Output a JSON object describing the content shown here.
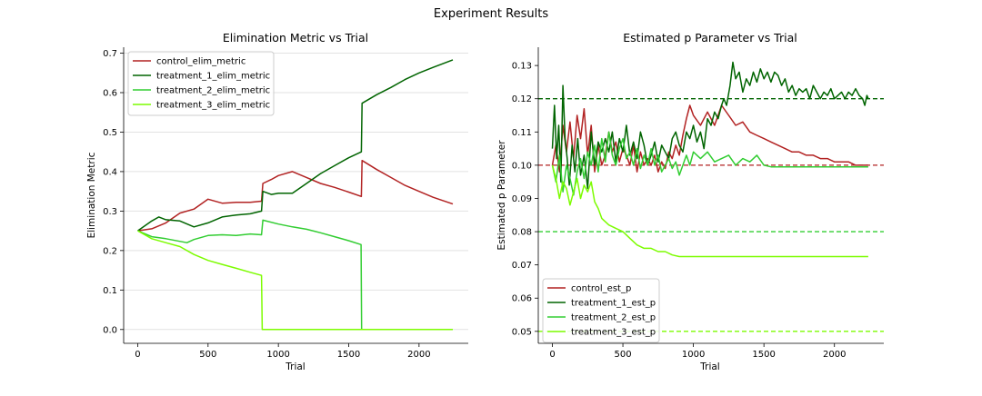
{
  "figure": {
    "title": "Experiment Results"
  },
  "chart_data": [
    {
      "type": "line",
      "title": "Elimination Metric vs Trial",
      "xlabel": "Trial",
      "ylabel": "Elimination Metric",
      "xlim": [
        -100,
        2350
      ],
      "ylim": [
        -0.035,
        0.715
      ],
      "xticks": [
        0,
        500,
        1000,
        1500,
        2000
      ],
      "yticks": [
        0.0,
        0.1,
        0.2,
        0.3,
        0.4,
        0.5,
        0.6,
        0.7
      ],
      "ytick_labels": [
        "0.0",
        "0.1",
        "0.2",
        "0.3",
        "0.4",
        "0.5",
        "0.6",
        "0.7"
      ],
      "grid": "horizontal",
      "legend_position": "top-left",
      "series": [
        {
          "name": "control_elim_metric",
          "color": "#b22222",
          "x": [
            0,
            100,
            200,
            300,
            400,
            500,
            600,
            700,
            800,
            880,
            890,
            950,
            1000,
            1100,
            1200,
            1300,
            1400,
            1500,
            1590,
            1595,
            1700,
            1800,
            1900,
            2000,
            2100,
            2240
          ],
          "y": [
            0.25,
            0.255,
            0.27,
            0.295,
            0.305,
            0.33,
            0.32,
            0.322,
            0.322,
            0.325,
            0.37,
            0.38,
            0.39,
            0.4,
            0.385,
            0.37,
            0.36,
            0.348,
            0.337,
            0.428,
            0.405,
            0.385,
            0.365,
            0.35,
            0.335,
            0.318
          ]
        },
        {
          "name": "treatment_1_elim_metric",
          "color": "#006400",
          "x": [
            0,
            100,
            150,
            200,
            300,
            400,
            500,
            600,
            700,
            800,
            880,
            890,
            950,
            1000,
            1100,
            1200,
            1300,
            1400,
            1500,
            1590,
            1595,
            1700,
            1800,
            1900,
            2000,
            2100,
            2240
          ],
          "y": [
            0.25,
            0.275,
            0.285,
            0.278,
            0.275,
            0.26,
            0.27,
            0.285,
            0.29,
            0.293,
            0.3,
            0.35,
            0.342,
            0.345,
            0.345,
            0.37,
            0.395,
            0.415,
            0.435,
            0.45,
            0.573,
            0.595,
            0.613,
            0.633,
            0.65,
            0.664,
            0.683
          ]
        },
        {
          "name": "treatment_2_elim_metric",
          "color": "#32cd32",
          "x": [
            0,
            100,
            200,
            350,
            400,
            500,
            600,
            700,
            800,
            880,
            890,
            1000,
            1100,
            1200,
            1300,
            1400,
            1500,
            1588,
            1592,
            2240
          ],
          "y": [
            0.25,
            0.235,
            0.23,
            0.22,
            0.228,
            0.238,
            0.24,
            0.238,
            0.242,
            0.24,
            0.277,
            0.267,
            0.26,
            0.254,
            0.245,
            0.235,
            0.225,
            0.215,
            0.0,
            0.0
          ]
        },
        {
          "name": "treatment_3_elim_metric",
          "color": "#7cfc00",
          "x": [
            0,
            100,
            200,
            300,
            400,
            500,
            600,
            700,
            800,
            880,
            885,
            2240
          ],
          "y": [
            0.25,
            0.23,
            0.22,
            0.21,
            0.19,
            0.175,
            0.165,
            0.155,
            0.145,
            0.137,
            0.0,
            0.0
          ]
        }
      ]
    },
    {
      "type": "line",
      "title": "Estimated p Parameter vs Trial",
      "xlabel": "Trial",
      "ylabel": "Estimated p Parameter",
      "xlim": [
        -100,
        2350
      ],
      "ylim": [
        0.0464,
        0.1355
      ],
      "xticks": [
        0,
        500,
        1000,
        1500,
        2000
      ],
      "yticks": [
        0.05,
        0.06,
        0.07,
        0.08,
        0.09,
        0.1,
        0.11,
        0.12,
        0.13
      ],
      "ytick_labels": [
        "0.05",
        "0.06",
        "0.07",
        "0.08",
        "0.09",
        "0.10",
        "0.11",
        "0.12",
        "0.13"
      ],
      "grid": "none",
      "legend_position": "bottom-left",
      "reference_lines": [
        {
          "y": 0.12,
          "color": "#006400"
        },
        {
          "y": 0.1,
          "color": "#b22222"
        },
        {
          "y": 0.08,
          "color": "#32cd32"
        },
        {
          "y": 0.05,
          "color": "#7cfc00"
        }
      ],
      "series": [
        {
          "name": "control_est_p",
          "color": "#b22222",
          "x": [
            0,
            25,
            50,
            75,
            100,
            125,
            150,
            175,
            200,
            225,
            250,
            275,
            300,
            325,
            350,
            375,
            400,
            425,
            450,
            475,
            500,
            525,
            550,
            575,
            600,
            625,
            650,
            675,
            700,
            725,
            750,
            775,
            800,
            825,
            850,
            875,
            900,
            925,
            950,
            975,
            1000,
            1050,
            1100,
            1150,
            1200,
            1250,
            1300,
            1350,
            1400,
            1450,
            1500,
            1550,
            1600,
            1650,
            1700,
            1750,
            1800,
            1850,
            1900,
            1950,
            2000,
            2050,
            2100,
            2150,
            2200,
            2240
          ],
          "y": [
            0.1,
            0.106,
            0.098,
            0.112,
            0.104,
            0.113,
            0.102,
            0.115,
            0.108,
            0.117,
            0.103,
            0.112,
            0.098,
            0.106,
            0.1,
            0.103,
            0.11,
            0.104,
            0.107,
            0.101,
            0.105,
            0.103,
            0.1,
            0.106,
            0.098,
            0.104,
            0.1,
            0.102,
            0.1,
            0.103,
            0.098,
            0.101,
            0.099,
            0.104,
            0.102,
            0.106,
            0.103,
            0.109,
            0.114,
            0.118,
            0.115,
            0.112,
            0.116,
            0.112,
            0.118,
            0.115,
            0.112,
            0.113,
            0.11,
            0.109,
            0.108,
            0.107,
            0.106,
            0.105,
            0.104,
            0.104,
            0.103,
            0.103,
            0.102,
            0.102,
            0.101,
            0.101,
            0.101,
            0.1,
            0.1,
            0.1
          ]
        },
        {
          "name": "treatment_1_est_p",
          "color": "#006400",
          "x": [
            0,
            15,
            30,
            45,
            60,
            75,
            90,
            105,
            120,
            140,
            160,
            180,
            200,
            225,
            250,
            275,
            300,
            325,
            350,
            375,
            400,
            425,
            450,
            475,
            500,
            525,
            550,
            575,
            600,
            625,
            650,
            675,
            700,
            725,
            750,
            775,
            800,
            825,
            850,
            875,
            900,
            925,
            950,
            975,
            1000,
            1025,
            1050,
            1075,
            1100,
            1125,
            1150,
            1175,
            1200,
            1215,
            1235,
            1260,
            1280,
            1300,
            1325,
            1350,
            1375,
            1400,
            1425,
            1450,
            1475,
            1500,
            1525,
            1550,
            1575,
            1600,
            1625,
            1650,
            1675,
            1700,
            1725,
            1750,
            1775,
            1800,
            1825,
            1850,
            1875,
            1900,
            1925,
            1950,
            1975,
            2000,
            2025,
            2050,
            2075,
            2100,
            2125,
            2150,
            2175,
            2200,
            2215,
            2230,
            2240
          ],
          "y": [
            0.105,
            0.118,
            0.102,
            0.112,
            0.095,
            0.124,
            0.108,
            0.102,
            0.094,
            0.106,
            0.098,
            0.108,
            0.097,
            0.103,
            0.093,
            0.11,
            0.1,
            0.107,
            0.104,
            0.108,
            0.104,
            0.11,
            0.101,
            0.108,
            0.104,
            0.112,
            0.103,
            0.107,
            0.102,
            0.11,
            0.106,
            0.1,
            0.103,
            0.107,
            0.101,
            0.106,
            0.104,
            0.102,
            0.108,
            0.11,
            0.106,
            0.104,
            0.11,
            0.108,
            0.112,
            0.107,
            0.11,
            0.105,
            0.114,
            0.112,
            0.116,
            0.114,
            0.118,
            0.12,
            0.118,
            0.124,
            0.131,
            0.126,
            0.128,
            0.122,
            0.126,
            0.124,
            0.128,
            0.125,
            0.129,
            0.126,
            0.128,
            0.125,
            0.128,
            0.127,
            0.124,
            0.126,
            0.122,
            0.124,
            0.121,
            0.123,
            0.122,
            0.123,
            0.12,
            0.124,
            0.122,
            0.12,
            0.122,
            0.121,
            0.123,
            0.12,
            0.121,
            0.122,
            0.12,
            0.122,
            0.121,
            0.123,
            0.121,
            0.12,
            0.118,
            0.121,
            0.12
          ]
        },
        {
          "name": "treatment_2_est_p",
          "color": "#32cd32",
          "x": [
            0,
            25,
            50,
            75,
            100,
            125,
            150,
            175,
            200,
            225,
            250,
            275,
            300,
            325,
            350,
            375,
            400,
            425,
            450,
            475,
            500,
            525,
            550,
            575,
            600,
            625,
            650,
            675,
            700,
            725,
            750,
            775,
            800,
            825,
            850,
            875,
            900,
            925,
            950,
            975,
            1000,
            1050,
            1100,
            1150,
            1200,
            1250,
            1300,
            1350,
            1400,
            1450,
            1500,
            1550,
            1600,
            1700,
            1800,
            1900,
            2000,
            2100,
            2240
          ],
          "y": [
            0.1,
            0.095,
            0.103,
            0.092,
            0.1,
            0.096,
            0.091,
            0.098,
            0.102,
            0.096,
            0.104,
            0.1,
            0.106,
            0.098,
            0.108,
            0.101,
            0.11,
            0.103,
            0.1,
            0.105,
            0.108,
            0.102,
            0.104,
            0.1,
            0.105,
            0.099,
            0.103,
            0.1,
            0.105,
            0.1,
            0.103,
            0.098,
            0.1,
            0.102,
            0.099,
            0.101,
            0.097,
            0.1,
            0.103,
            0.1,
            0.104,
            0.102,
            0.104,
            0.101,
            0.102,
            0.103,
            0.1,
            0.102,
            0.101,
            0.103,
            0.1,
            0.0995,
            0.0995,
            0.0995,
            0.0995,
            0.0995,
            0.0995,
            0.0995,
            0.0995
          ]
        },
        {
          "name": "treatment_3_est_p",
          "color": "#7cfc00",
          "x": [
            0,
            25,
            50,
            75,
            100,
            125,
            150,
            175,
            200,
            225,
            250,
            275,
            300,
            325,
            350,
            375,
            400,
            450,
            500,
            550,
            600,
            650,
            700,
            750,
            800,
            850,
            900,
            1000,
            1200,
            1400,
            1600,
            1800,
            2000,
            2240
          ],
          "y": [
            0.1,
            0.096,
            0.09,
            0.095,
            0.093,
            0.088,
            0.092,
            0.096,
            0.09,
            0.094,
            0.092,
            0.095,
            0.089,
            0.087,
            0.084,
            0.083,
            0.082,
            0.081,
            0.08,
            0.078,
            0.076,
            0.075,
            0.075,
            0.074,
            0.074,
            0.073,
            0.0725,
            0.0725,
            0.0725,
            0.0725,
            0.0725,
            0.0725,
            0.0725,
            0.0725
          ]
        }
      ]
    }
  ]
}
